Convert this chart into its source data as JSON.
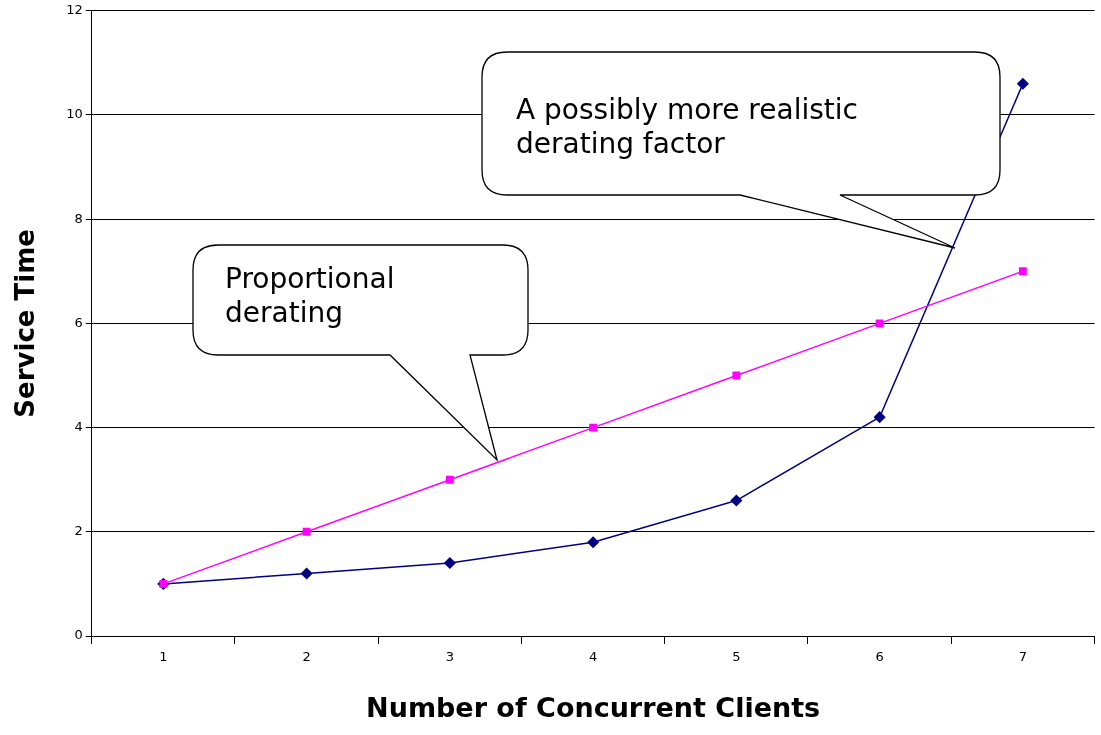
{
  "chart_data": {
    "type": "line",
    "xlabel": "Number of Concurrent Clients",
    "ylabel": "Service Time",
    "categories": [
      "1",
      "2",
      "3",
      "4",
      "5",
      "6",
      "7"
    ],
    "series": [
      {
        "color": "#000080",
        "marker": "diamond",
        "values": [
          1,
          1.2,
          1.4,
          1.8,
          2.6,
          4.2,
          10.6
        ]
      },
      {
        "color": "#ff00ff",
        "marker": "square",
        "values": [
          1,
          2,
          3,
          4,
          5,
          6,
          7
        ]
      }
    ],
    "ylim": [
      0,
      12
    ],
    "yticks": [
      0,
      2,
      4,
      6,
      8,
      10,
      12
    ],
    "grid": "y",
    "line_style": "solid",
    "annotations": [
      "Proportional derating",
      "A possibly more realistic derating factor"
    ]
  }
}
